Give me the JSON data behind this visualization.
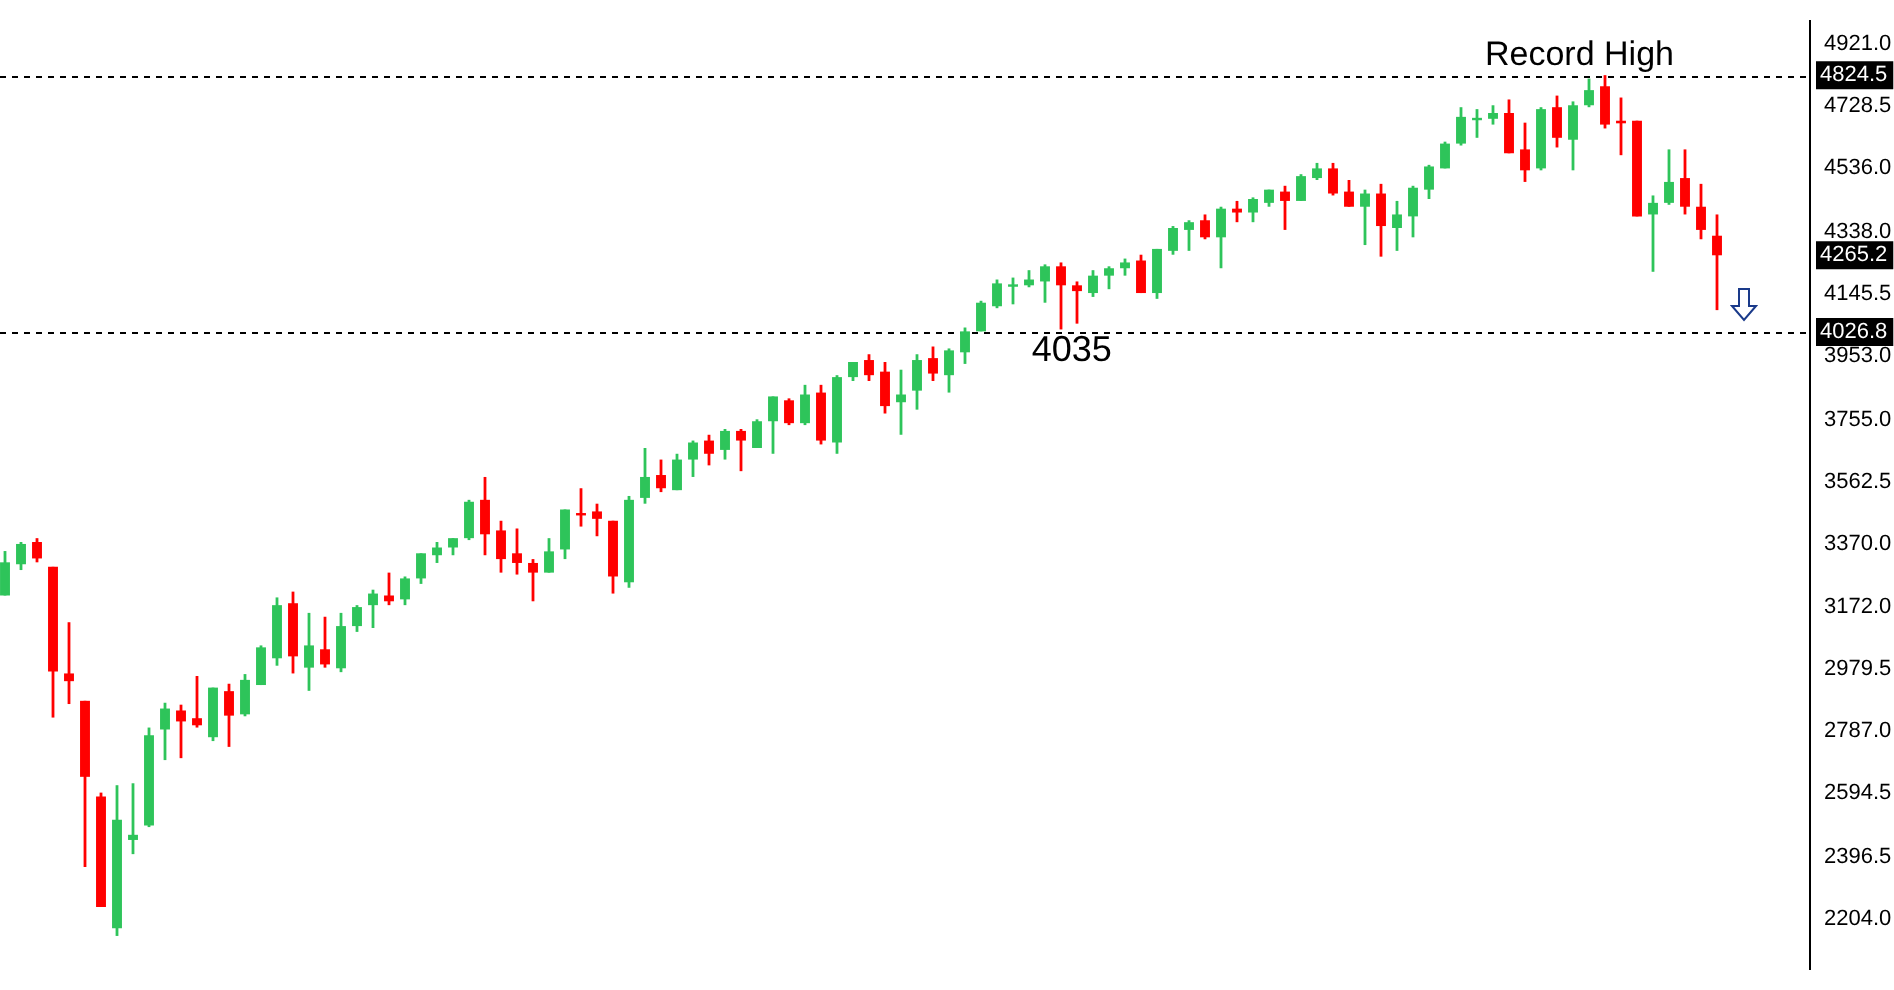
{
  "chart_data": {
    "type": "candlestick",
    "categories": [
      null,
      null,
      null,
      null,
      null,
      null,
      null,
      null,
      null,
      null,
      null,
      null,
      null,
      null,
      null,
      null,
      null,
      null,
      null,
      null,
      null,
      null,
      null,
      null,
      null,
      null,
      null,
      null,
      null,
      null,
      null,
      null,
      null,
      null,
      null,
      null,
      null,
      null,
      null,
      null,
      null,
      null,
      null,
      null,
      null,
      null,
      null,
      null,
      null,
      null,
      null,
      null,
      null,
      null,
      null,
      null,
      null,
      null,
      null,
      null,
      null,
      null,
      null,
      null,
      null,
      null,
      null,
      null,
      null,
      null,
      null,
      null,
      null,
      null,
      null,
      null,
      null,
      null,
      null,
      null,
      null,
      null,
      null,
      null,
      null,
      null,
      null,
      null,
      null,
      null,
      null,
      null,
      null,
      null,
      null,
      null,
      null,
      null,
      null,
      null,
      null,
      null,
      null,
      null,
      null,
      null,
      null,
      null
    ],
    "ohlc": [
      [
        3209,
        3347,
        3209,
        3312
      ],
      [
        3306,
        3375,
        3288,
        3369
      ],
      [
        3375,
        3387,
        3312,
        3324
      ],
      [
        3298,
        3298,
        2830,
        2973
      ],
      [
        2967,
        3126,
        2872,
        2943
      ],
      [
        2882,
        2882,
        2366,
        2646
      ],
      [
        2585,
        2597,
        2242,
        2242
      ],
      [
        2176,
        2620,
        2152,
        2513
      ],
      [
        2450,
        2626,
        2406,
        2466
      ],
      [
        2495,
        2799,
        2490,
        2775
      ],
      [
        2793,
        2876,
        2698,
        2858
      ],
      [
        2852,
        2870,
        2704,
        2818
      ],
      [
        2828,
        2959,
        2799,
        2806
      ],
      [
        2769,
        2923,
        2757,
        2923
      ],
      [
        2912,
        2935,
        2739,
        2836
      ],
      [
        2840,
        2965,
        2834,
        2947
      ],
      [
        2931,
        3054,
        2931,
        3048
      ],
      [
        3014,
        3203,
        2991,
        3179
      ],
      [
        3185,
        3221,
        2967,
        3020
      ],
      [
        2985,
        3155,
        2913,
        3054
      ],
      [
        3042,
        3143,
        2985,
        2995
      ],
      [
        2983,
        3155,
        2971,
        3114
      ],
      [
        3114,
        3179,
        3096,
        3173
      ],
      [
        3179,
        3227,
        3108,
        3215
      ],
      [
        3209,
        3280,
        3179,
        3191
      ],
      [
        3197,
        3268,
        3179,
        3262
      ],
      [
        3262,
        3340,
        3245,
        3340
      ],
      [
        3334,
        3375,
        3310,
        3358
      ],
      [
        3358,
        3387,
        3334,
        3387
      ],
      [
        3387,
        3506,
        3381,
        3500
      ],
      [
        3506,
        3577,
        3334,
        3399
      ],
      [
        3411,
        3441,
        3280,
        3322
      ],
      [
        3340,
        3417,
        3274,
        3310
      ],
      [
        3310,
        3322,
        3191,
        3280
      ],
      [
        3280,
        3387,
        3280,
        3346
      ],
      [
        3352,
        3476,
        3322,
        3476
      ],
      [
        3465,
        3542,
        3423,
        3460
      ],
      [
        3470,
        3494,
        3393,
        3447
      ],
      [
        3441,
        3441,
        3215,
        3268
      ],
      [
        3250,
        3518,
        3233,
        3506
      ],
      [
        3512,
        3667,
        3494,
        3577
      ],
      [
        3583,
        3631,
        3530,
        3542
      ],
      [
        3536,
        3649,
        3536,
        3631
      ],
      [
        3631,
        3690,
        3577,
        3684
      ],
      [
        3690,
        3708,
        3613,
        3649
      ],
      [
        3661,
        3726,
        3631,
        3720
      ],
      [
        3720,
        3726,
        3595,
        3690
      ],
      [
        3667,
        3756,
        3667,
        3750
      ],
      [
        3750,
        3827,
        3649,
        3827
      ],
      [
        3815,
        3821,
        3738,
        3744
      ],
      [
        3744,
        3863,
        3738,
        3833
      ],
      [
        3839,
        3863,
        3678,
        3690
      ],
      [
        3684,
        3893,
        3649,
        3887
      ],
      [
        3887,
        3934,
        3875,
        3934
      ],
      [
        3940,
        3958,
        3875,
        3893
      ],
      [
        3904,
        3934,
        3774,
        3797
      ],
      [
        3809,
        3910,
        3708,
        3833
      ],
      [
        3845,
        3958,
        3786,
        3940
      ],
      [
        3946,
        3982,
        3875,
        3898
      ],
      [
        3893,
        3976,
        3839,
        3970
      ],
      [
        3964,
        4041,
        3928,
        4029
      ],
      [
        4029,
        4124,
        4029,
        4118
      ],
      [
        4107,
        4190,
        4101,
        4178
      ],
      [
        4172,
        4196,
        4113,
        4175
      ],
      [
        4172,
        4219,
        4166,
        4190
      ],
      [
        4184,
        4237,
        4118,
        4231
      ],
      [
        4231,
        4243,
        4035,
        4172
      ],
      [
        4172,
        4184,
        4053,
        4154
      ],
      [
        4148,
        4219,
        4136,
        4202
      ],
      [
        4202,
        4231,
        4160,
        4225
      ],
      [
        4225,
        4255,
        4202,
        4243
      ],
      [
        4249,
        4267,
        4148,
        4148
      ],
      [
        4148,
        4285,
        4130,
        4285
      ],
      [
        4279,
        4356,
        4267,
        4350
      ],
      [
        4344,
        4374,
        4279,
        4368
      ],
      [
        4374,
        4392,
        4315,
        4321
      ],
      [
        4321,
        4416,
        4225,
        4410
      ],
      [
        4410,
        4434,
        4368,
        4398
      ],
      [
        4398,
        4445,
        4368,
        4440
      ],
      [
        4428,
        4469,
        4416,
        4469
      ],
      [
        4463,
        4481,
        4344,
        4434
      ],
      [
        4434,
        4517,
        4434,
        4511
      ],
      [
        4505,
        4552,
        4499,
        4535
      ],
      [
        4535,
        4552,
        4451,
        4457
      ],
      [
        4463,
        4499,
        4416,
        4416
      ],
      [
        4416,
        4469,
        4297,
        4457
      ],
      [
        4457,
        4487,
        4261,
        4356
      ],
      [
        4350,
        4434,
        4279,
        4392
      ],
      [
        4386,
        4481,
        4321,
        4475
      ],
      [
        4469,
        4546,
        4440,
        4541
      ],
      [
        4535,
        4618,
        4535,
        4612
      ],
      [
        4612,
        4725,
        4606,
        4695
      ],
      [
        4687,
        4719,
        4630,
        4692
      ],
      [
        4689,
        4731,
        4671,
        4707
      ],
      [
        4707,
        4749,
        4582,
        4582
      ],
      [
        4594,
        4677,
        4493,
        4529
      ],
      [
        4535,
        4725,
        4529,
        4719
      ],
      [
        4725,
        4761,
        4600,
        4630
      ],
      [
        4624,
        4743,
        4529,
        4731
      ],
      [
        4731,
        4814,
        4725,
        4778
      ],
      [
        4790,
        4824.5,
        4659,
        4671
      ],
      [
        4683,
        4755,
        4576,
        4675
      ],
      [
        4683,
        4683,
        4386,
        4386
      ],
      [
        4392,
        4451,
        4214,
        4428
      ],
      [
        4428,
        4594,
        4422,
        4493
      ],
      [
        4505,
        4594,
        4392,
        4416
      ],
      [
        4416,
        4487,
        4315,
        4344
      ],
      [
        4326,
        4392,
        4095,
        4265.2
      ]
    ],
    "colors": [
      "#2ec45a",
      "#2ec45a",
      "#ff0000",
      "#ff0000",
      "#ff0000",
      "#ff0000",
      "#ff0000",
      "#2ec45a",
      "#2ec45a",
      "#2ec45a",
      "#2ec45a",
      "#ff0000",
      "#ff0000",
      "#2ec45a",
      "#ff0000",
      "#2ec45a",
      "#2ec45a",
      "#2ec45a",
      "#ff0000",
      "#2ec45a",
      "#ff0000",
      "#2ec45a",
      "#2ec45a",
      "#2ec45a",
      "#ff0000",
      "#2ec45a",
      "#2ec45a",
      "#2ec45a",
      "#2ec45a",
      "#2ec45a",
      "#ff0000",
      "#ff0000",
      "#ff0000",
      "#ff0000",
      "#2ec45a",
      "#2ec45a",
      "#ff0000",
      "#ff0000",
      "#ff0000",
      "#2ec45a",
      "#2ec45a",
      "#ff0000",
      "#2ec45a",
      "#2ec45a",
      "#ff0000",
      "#2ec45a",
      "#ff0000",
      "#2ec45a",
      "#2ec45a",
      "#ff0000",
      "#2ec45a",
      "#ff0000",
      "#2ec45a",
      "#2ec45a",
      "#ff0000",
      "#ff0000",
      "#2ec45a",
      "#2ec45a",
      "#ff0000",
      "#2ec45a",
      "#2ec45a",
      "#2ec45a",
      "#2ec45a",
      "#2ec45a",
      "#2ec45a",
      "#2ec45a",
      "#ff0000",
      "#ff0000",
      "#2ec45a",
      "#2ec45a",
      "#2ec45a",
      "#ff0000",
      "#2ec45a",
      "#2ec45a",
      "#2ec45a",
      "#ff0000",
      "#2ec45a",
      "#ff0000",
      "#2ec45a",
      "#2ec45a",
      "#ff0000",
      "#2ec45a",
      "#2ec45a",
      "#ff0000",
      "#ff0000",
      "#2ec45a",
      "#ff0000",
      "#2ec45a",
      "#2ec45a",
      "#2ec45a",
      "#2ec45a",
      "#2ec45a",
      "#2ec45a",
      "#2ec45a",
      "#ff0000",
      "#ff0000",
      "#2ec45a",
      "#ff0000",
      "#2ec45a",
      "#2ec45a",
      "#ff0000",
      "#ff0000",
      "#ff0000",
      "#2ec45a",
      "#2ec45a",
      "#ff0000",
      "#ff0000",
      "#ff0000"
    ],
    "ylim": [
      2050,
      4992
    ],
    "yticks": [
      {
        "value": 4921,
        "label": "4921.0"
      },
      4824.5,
      4728.5,
      {
        "value": 4536,
        "label": "4536.0"
      },
      {
        "value": 4338,
        "label": "4338.0"
      },
      4265.2,
      4145.5,
      4026.8,
      {
        "value": 3953,
        "label": "3953.0"
      },
      {
        "value": 3755,
        "label": "3755.0"
      },
      3562.5,
      {
        "value": 3370,
        "label": "3370.0"
      },
      {
        "value": 3172,
        "label": "3172.0"
      },
      2979.5,
      {
        "value": 2787,
        "label": "2787.0"
      },
      2594.5,
      2396.5,
      {
        "value": 2204,
        "label": "2204.0"
      }
    ],
    "tick_labels": "y",
    "ref_lines": [
      {
        "axis": "y",
        "value": 4824.5,
        "label": "Record High",
        "color": "#000000",
        "line_style": "dashed"
      },
      {
        "axis": "y",
        "value": 4026.8,
        "color": "#000000",
        "line_style": "dashed"
      }
    ],
    "annotations": [
      {
        "text": "4035",
        "y": 4035
      }
    ]
  }
}
